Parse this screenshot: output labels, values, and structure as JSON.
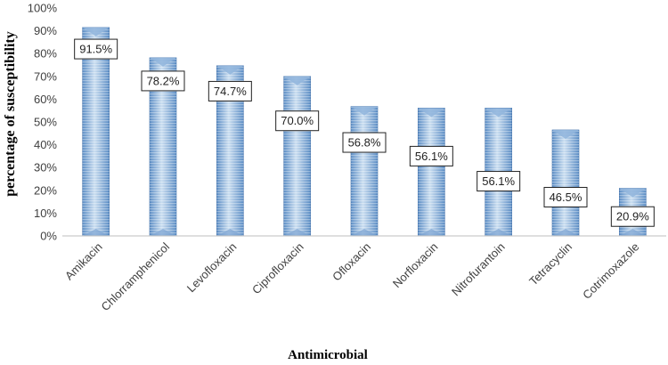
{
  "chart_data": {
    "type": "bar",
    "title": "",
    "xlabel": "Antimicrobial",
    "ylabel": "percentage of susceptibility",
    "categories": [
      "Amikacin",
      "Chlorramphenicol",
      "Levofloxacin",
      "Ciprofloxacin",
      "Ofloxacin",
      "Norfloxacin",
      "Nitrofurantoin",
      "Tetracyclin",
      "Cotrimoxazole"
    ],
    "values": [
      91.5,
      78.2,
      74.7,
      70.0,
      56.8,
      56.1,
      56.1,
      46.5,
      20.9
    ],
    "data_labels": [
      "91.5%",
      "78.2%",
      "74.7%",
      "70.0%",
      "56.8%",
      "56.1%",
      "56.1%",
      "46.5%",
      "20.9%"
    ],
    "label_values": [
      82,
      68,
      63.5,
      50.5,
      41,
      35,
      24,
      17,
      8.5
    ],
    "ylim": [
      0,
      100
    ],
    "yticks": [
      "0%",
      "10%",
      "20%",
      "30%",
      "40%",
      "50%",
      "60%",
      "70%",
      "80%",
      "90%",
      "100%"
    ],
    "grid": false,
    "legend": "none",
    "colors": {
      "bar_light": "#c9ddf0",
      "bar_dark": "#5a8cc4",
      "bar_edge": "#3f6ea8",
      "axis": "#bfbfbf"
    }
  }
}
